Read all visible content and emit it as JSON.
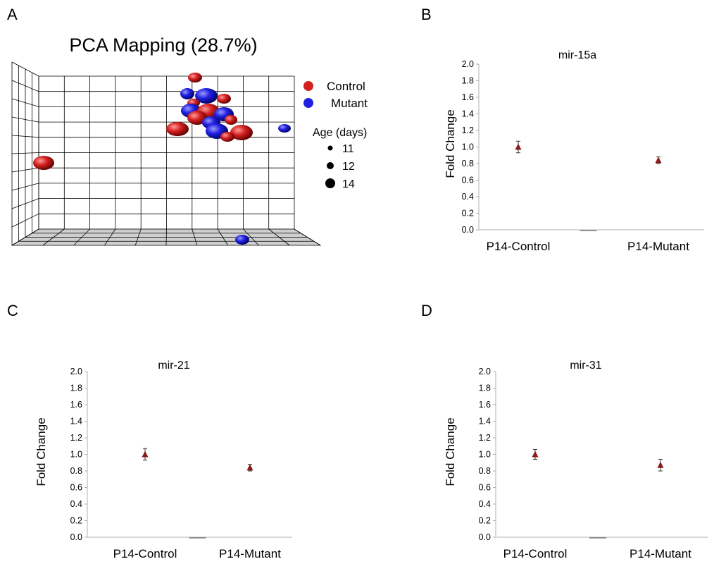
{
  "panels": [
    {
      "letter": "A"
    },
    {
      "letter": "B"
    },
    {
      "letter": "C"
    },
    {
      "letter": "D"
    }
  ],
  "chart_data": [
    {
      "type": "scatter",
      "title": "PCA Mapping (28.7%)",
      "legend": [
        {
          "label": "Control",
          "color": "#d42020"
        },
        {
          "label": "Mutant",
          "color": "#2020e0"
        }
      ],
      "size_legend": {
        "title": "Age (days)",
        "sizes": [
          "11",
          "12",
          "14"
        ]
      },
      "legend_position": "right",
      "grid": true
    },
    {
      "type": "scatter",
      "title": "mir-15a",
      "ylabel": "Fold Change",
      "categories": [
        "P14-Control",
        "P14-Mutant"
      ],
      "values": [
        1.0,
        0.84
      ],
      "errors": [
        0.07,
        0.04
      ],
      "ylim": [
        0.0,
        2.0
      ],
      "yticks": [
        "0.0",
        "0.2",
        "0.4",
        "0.6",
        "0.8",
        "1.0",
        "1.2",
        "1.4",
        "1.6",
        "1.8",
        "2.0"
      ],
      "marker_color": "#8b1a1a"
    },
    {
      "type": "scatter",
      "title": "mir-21",
      "ylabel": "Fold Change",
      "categories": [
        "P14-Control",
        "P14-Mutant"
      ],
      "values": [
        1.0,
        0.84
      ],
      "errors": [
        0.07,
        0.04
      ],
      "ylim": [
        0.0,
        2.0
      ],
      "yticks": [
        "0.0",
        "0.2",
        "0.4",
        "0.6",
        "0.8",
        "1.0",
        "1.2",
        "1.4",
        "1.6",
        "1.8",
        "2.0"
      ],
      "marker_color": "#8b1a1a"
    },
    {
      "type": "scatter",
      "title": "mir-31",
      "ylabel": "Fold Change",
      "categories": [
        "P14-Control",
        "P14-Mutant"
      ],
      "values": [
        1.0,
        0.87
      ],
      "errors": [
        0.06,
        0.07
      ],
      "ylim": [
        0.0,
        2.0
      ],
      "yticks": [
        "0.0",
        "0.2",
        "0.4",
        "0.6",
        "0.8",
        "1.0",
        "1.2",
        "1.4",
        "1.6",
        "1.8",
        "2.0"
      ],
      "marker_color": "#8b1a1a"
    }
  ]
}
